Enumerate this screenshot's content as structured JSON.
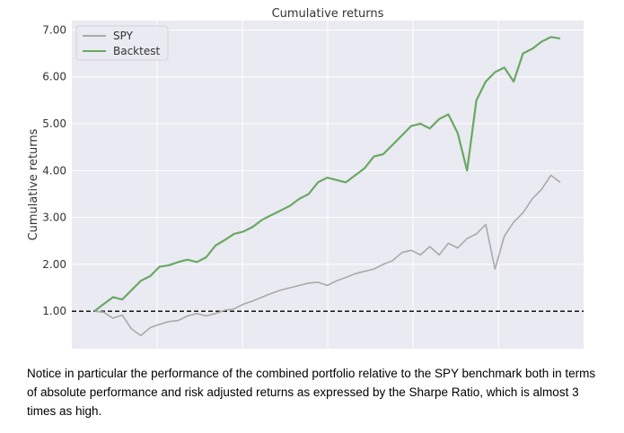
{
  "chart_data": {
    "type": "line",
    "title": "Cumulative returns",
    "xlabel": "",
    "ylabel": "Cumulative returns",
    "ylim": [
      0.2,
      7.2
    ],
    "y_ticks": [
      "1.00",
      "2.00",
      "3.00",
      "4.00",
      "5.00",
      "6.00",
      "7.00"
    ],
    "grid": true,
    "legend_position": "top-left",
    "baseline": 1.0,
    "x": [
      0,
      1,
      2,
      3,
      4,
      5,
      6,
      7,
      8,
      9,
      10,
      11,
      12,
      13,
      14,
      15,
      16,
      17,
      18,
      19,
      20,
      21,
      22,
      23,
      24,
      25,
      26,
      27,
      28,
      29,
      30,
      31,
      32,
      33,
      34,
      35,
      36,
      37,
      38,
      39,
      40,
      41,
      42,
      43,
      44,
      45,
      46,
      47,
      48,
      49,
      50
    ],
    "series": [
      {
        "name": "SPY",
        "color": "#aaaaaa",
        "values": [
          1.0,
          0.98,
          0.85,
          0.92,
          0.62,
          0.48,
          0.65,
          0.72,
          0.78,
          0.8,
          0.9,
          0.95,
          0.9,
          0.95,
          1.02,
          1.05,
          1.15,
          1.22,
          1.3,
          1.38,
          1.45,
          1.5,
          1.55,
          1.6,
          1.62,
          1.55,
          1.65,
          1.72,
          1.8,
          1.85,
          1.9,
          2.0,
          2.08,
          2.25,
          2.3,
          2.2,
          2.38,
          2.2,
          2.45,
          2.35,
          2.55,
          2.65,
          2.85,
          1.9,
          2.6,
          2.9,
          3.1,
          3.4,
          3.6,
          3.9,
          3.75
        ]
      },
      {
        "name": "Backtest",
        "color": "#6aa863",
        "values": [
          1.0,
          1.15,
          1.3,
          1.25,
          1.45,
          1.65,
          1.75,
          1.95,
          1.98,
          2.05,
          2.1,
          2.05,
          2.15,
          2.4,
          2.52,
          2.65,
          2.7,
          2.8,
          2.95,
          3.05,
          3.15,
          3.25,
          3.4,
          3.5,
          3.75,
          3.85,
          3.8,
          3.75,
          3.9,
          4.05,
          4.3,
          4.35,
          4.55,
          4.75,
          4.95,
          5.0,
          4.9,
          5.1,
          5.2,
          4.8,
          4.0,
          5.5,
          5.9,
          6.1,
          6.2,
          5.9,
          6.5,
          6.6,
          6.75,
          6.85,
          6.82
        ]
      }
    ]
  },
  "caption": "Notice in particular the performance of the combined portfolio relative to the SPY benchmark both in terms of absolute performance and risk adjusted returns as expressed by the Sharpe Ratio, which is almost 3 times as high."
}
